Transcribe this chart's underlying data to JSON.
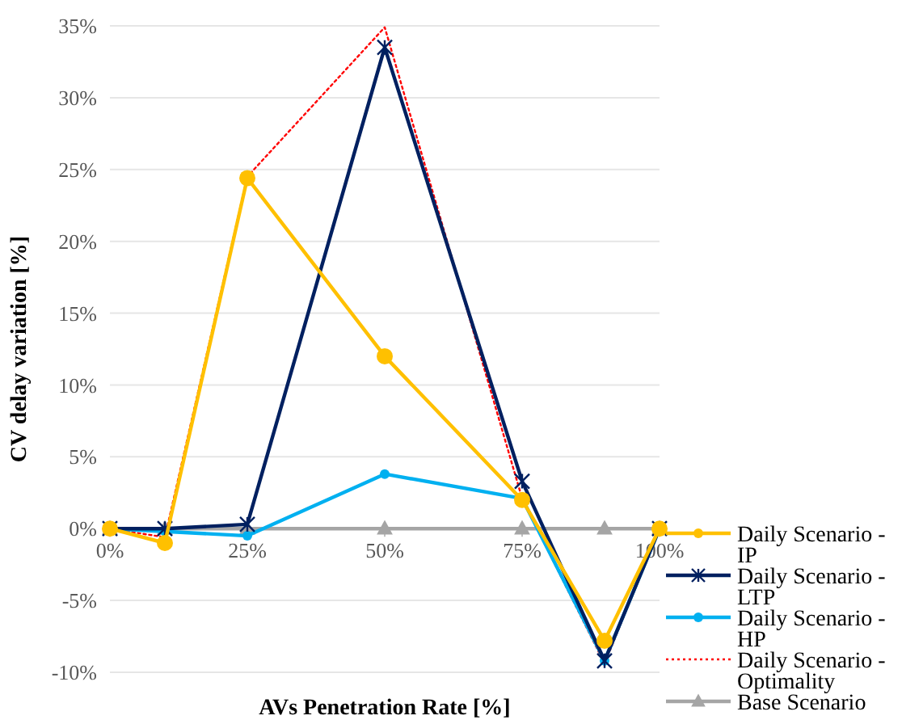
{
  "chart_data": {
    "type": "line",
    "xlabel": "AVs Penetration Rate [%]",
    "ylabel": "CV delay variation [%]",
    "x": [
      0,
      10,
      25,
      50,
      75,
      90,
      100
    ],
    "xlim": [
      0,
      100
    ],
    "xticks": [
      {
        "value": 0,
        "label": "0%"
      },
      {
        "value": 25,
        "label": "25%"
      },
      {
        "value": 50,
        "label": "50%"
      },
      {
        "value": 75,
        "label": "75%"
      },
      {
        "value": 100,
        "label": "100%"
      }
    ],
    "ylim": [
      -10,
      35
    ],
    "yticks": [
      {
        "value": -10,
        "label": "-10%"
      },
      {
        "value": -5,
        "label": "-5%"
      },
      {
        "value": 0,
        "label": "0%"
      },
      {
        "value": 5,
        "label": "5%"
      },
      {
        "value": 10,
        "label": "10%"
      },
      {
        "value": 15,
        "label": "15%"
      },
      {
        "value": 20,
        "label": "20%"
      },
      {
        "value": 25,
        "label": "25%"
      },
      {
        "value": 30,
        "label": "30%"
      },
      {
        "value": 35,
        "label": "35%"
      }
    ],
    "grid": "y",
    "legend": "right",
    "series": [
      {
        "name": "Daily Scenario - IP",
        "color": "#ffc000",
        "marker": "circle",
        "line_style": "solid",
        "values": [
          0,
          -1.0,
          24.4,
          12.0,
          2.0,
          -7.8,
          0
        ]
      },
      {
        "name": "Daily Scenario - LTP",
        "color": "#002060",
        "marker": "cross",
        "line_style": "solid",
        "values": [
          0,
          0,
          0.3,
          33.5,
          3.3,
          -9.2,
          0
        ]
      },
      {
        "name": "Daily Scenario - HP",
        "color": "#00b0f0",
        "marker": "circle",
        "line_style": "solid",
        "values": [
          0,
          -0.2,
          -0.5,
          3.8,
          2.1,
          -9.2,
          0
        ]
      },
      {
        "name": "Daily Scenario - Optimality",
        "color": "#ff0000",
        "marker": "none",
        "line_style": "dotted",
        "values": [
          0,
          -0.6,
          24.5,
          34.9,
          2.1,
          -9.4,
          0
        ]
      },
      {
        "name": "Base Scenario",
        "color": "#a5a5a5",
        "marker": "triangle",
        "line_style": "solid",
        "values": [
          0,
          0,
          0,
          0,
          0,
          0,
          0
        ]
      }
    ]
  }
}
